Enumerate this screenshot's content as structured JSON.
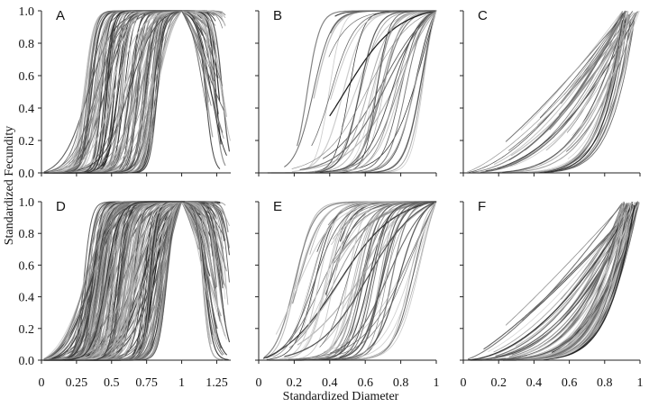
{
  "figure": {
    "ylabel": "Standardized Fecundity",
    "xlabel": "Standardized Diameter",
    "y_tick_labels": [
      "0.0",
      "0.2",
      "0.4",
      "0.6",
      "0.8",
      "1.0"
    ]
  },
  "chart_data": [
    {
      "panel": "A",
      "type": "line",
      "xlim": [
        0,
        1.35
      ],
      "ylim": [
        0,
        1
      ],
      "x_ticks": [
        0,
        0.25,
        0.5,
        0.75,
        1,
        1.25
      ],
      "x_tick_labels": [],
      "curve_family": "rise-to-peak-at-1-then-decline",
      "n_curves": 110,
      "midpoint_range": [
        0.3,
        0.85
      ],
      "steepness_range": [
        10,
        45
      ],
      "grey_range": [
        "#000000",
        "#c8c8c8"
      ]
    },
    {
      "panel": "B",
      "type": "line",
      "xlim": [
        0,
        1
      ],
      "ylim": [
        0,
        1
      ],
      "x_ticks": [
        0,
        0.2,
        0.4,
        0.6,
        0.8,
        1
      ],
      "x_tick_labels": [],
      "curve_family": "sigmoid-rising-to-1-at-x1",
      "n_curves": 40,
      "midpoint_range": [
        0.25,
        0.95
      ],
      "steepness_range": [
        6,
        30
      ],
      "grey_range": [
        "#000000",
        "#d0d0d0"
      ]
    },
    {
      "panel": "C",
      "type": "line",
      "xlim": [
        0,
        1
      ],
      "ylim": [
        0,
        1
      ],
      "x_ticks": [
        0,
        0.2,
        0.4,
        0.6,
        0.8,
        1
      ],
      "x_tick_labels": [],
      "curve_family": "convex-power-rising-to-1-at-x1",
      "n_curves": 45,
      "exponent_range": [
        1.2,
        8
      ],
      "grey_range": [
        "#000000",
        "#d0d0d0"
      ]
    },
    {
      "panel": "D",
      "type": "line",
      "xlim": [
        0,
        1.35
      ],
      "ylim": [
        0,
        1
      ],
      "x_ticks": [
        0,
        0.25,
        0.5,
        0.75,
        1,
        1.25
      ],
      "x_tick_labels": [
        "0",
        "0.25",
        "0.5",
        "0.75",
        "1",
        "1.25"
      ],
      "curve_family": "rise-to-peak-at-1-then-decline",
      "n_curves": 190,
      "midpoint_range": [
        0.3,
        0.9
      ],
      "steepness_range": [
        8,
        40
      ],
      "grey_range": [
        "#000000",
        "#c8c8c8"
      ]
    },
    {
      "panel": "E",
      "type": "line",
      "xlim": [
        0,
        1
      ],
      "ylim": [
        0,
        1
      ],
      "x_ticks": [
        0,
        0.2,
        0.4,
        0.6,
        0.8,
        1
      ],
      "x_tick_labels": [
        "0",
        "0.2",
        "0.4",
        "0.6",
        "0.8",
        "1"
      ],
      "curve_family": "sigmoid-rising-to-1-at-x1",
      "n_curves": 70,
      "midpoint_range": [
        0.2,
        0.95
      ],
      "steepness_range": [
        5,
        25
      ],
      "grey_range": [
        "#000000",
        "#d0d0d0"
      ]
    },
    {
      "panel": "F",
      "type": "line",
      "xlim": [
        0,
        1
      ],
      "ylim": [
        0,
        1
      ],
      "x_ticks": [
        0,
        0.2,
        0.4,
        0.6,
        0.8,
        1
      ],
      "x_tick_labels": [
        "0",
        "0.2",
        "0.4",
        "0.6",
        "0.8",
        "1"
      ],
      "curve_family": "convex-power-rising-to-1-at-x1",
      "n_curves": 75,
      "exponent_range": [
        1.1,
        7
      ],
      "grey_range": [
        "#000000",
        "#d0d0d0"
      ]
    }
  ]
}
